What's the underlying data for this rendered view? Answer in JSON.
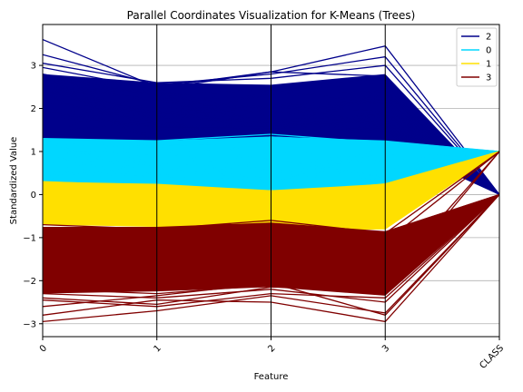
{
  "chart_data": {
    "type": "parallel-coordinates",
    "title": "Parallel Coordinates Visualization for K-Means (Trees)",
    "xlabel": "Feature",
    "ylabel": "Standardized Value",
    "axes": [
      "0",
      "1",
      "2",
      "3",
      "CLASS"
    ],
    "ylim": [
      -3.3,
      3.95
    ],
    "yticks": [
      -3,
      -2,
      -1,
      0,
      1,
      2,
      3
    ],
    "grid": true,
    "legend_position": "top-right",
    "series": [
      {
        "name": "2",
        "color": "#00008b",
        "class_value": 0.0,
        "bands": [
          [
            1.3,
            2.8
          ],
          [
            1.15,
            2.6
          ],
          [
            1.0,
            2.55
          ],
          [
            1.2,
            2.8
          ]
        ],
        "samples": [
          [
            3.6,
            2.5,
            2.85,
            3.45,
            0.0
          ],
          [
            3.25,
            2.55,
            2.8,
            3.2,
            0.0
          ],
          [
            3.05,
            2.6,
            2.7,
            3.0,
            0.0
          ],
          [
            2.95,
            2.45,
            2.85,
            2.75,
            0.0
          ],
          [
            2.8,
            2.3,
            2.45,
            2.7,
            0.0
          ],
          [
            2.7,
            2.55,
            2.4,
            2.6,
            0.0
          ],
          [
            2.5,
            2.2,
            2.3,
            2.4,
            0.0
          ],
          [
            2.3,
            2.0,
            2.1,
            2.2,
            0.0
          ],
          [
            2.0,
            1.8,
            1.7,
            1.9,
            0.0
          ],
          [
            1.8,
            1.6,
            1.55,
            1.7,
            0.0
          ],
          [
            1.5,
            1.4,
            1.3,
            1.5,
            0.0
          ]
        ]
      },
      {
        "name": "0",
        "color": "#00d7ff",
        "class_value": 1.0,
        "bands": [
          [
            0.25,
            1.3
          ],
          [
            0.2,
            1.25
          ],
          [
            0.05,
            1.35
          ],
          [
            0.15,
            1.25
          ]
        ],
        "samples": [
          [
            1.3,
            1.25,
            1.4,
            1.2,
            1.0
          ],
          [
            1.1,
            0.9,
            1.15,
            1.1,
            1.0
          ],
          [
            0.8,
            0.7,
            0.6,
            0.9,
            1.0
          ],
          [
            0.5,
            0.45,
            0.3,
            0.6,
            1.0
          ],
          [
            0.3,
            0.35,
            0.2,
            0.35,
            1.0
          ],
          [
            0.95,
            1.0,
            0.55,
            0.2,
            1.0
          ],
          [
            0.6,
            0.2,
            0.8,
            0.4,
            1.0
          ],
          [
            0.1,
            0.3,
            -0.35,
            0.0,
            1.0
          ]
        ]
      },
      {
        "name": "1",
        "color": "#ffe000",
        "class_value": 1.0,
        "bands": [
          [
            -0.7,
            0.3
          ],
          [
            -0.75,
            0.25
          ],
          [
            -0.85,
            0.1
          ],
          [
            -0.8,
            0.25
          ]
        ],
        "samples": [
          [
            0.3,
            0.2,
            0.0,
            0.25,
            1.0
          ],
          [
            0.0,
            -0.1,
            -0.2,
            0.0,
            1.0
          ],
          [
            -0.3,
            -0.4,
            -0.5,
            -0.3,
            1.0
          ],
          [
            -0.6,
            -0.7,
            -0.8,
            -0.7,
            1.0
          ],
          [
            -0.1,
            -0.2,
            -0.65,
            -0.5,
            1.0
          ]
        ]
      },
      {
        "name": "3",
        "color": "#800000",
        "class_value": 0.0,
        "bands": [
          [
            -2.3,
            -0.75
          ],
          [
            -2.25,
            -0.75
          ],
          [
            -2.15,
            -0.65
          ],
          [
            -2.35,
            -0.85
          ]
        ],
        "samples": [
          [
            -0.7,
            -0.8,
            -0.6,
            -0.9,
            1.0
          ],
          [
            -0.9,
            -1.0,
            -0.9,
            -1.1,
            1.0
          ],
          [
            -1.2,
            -1.3,
            -1.2,
            -1.4,
            0.0
          ],
          [
            -1.6,
            -1.5,
            -1.4,
            -1.7,
            0.0
          ],
          [
            -2.0,
            -1.9,
            -1.8,
            -2.0,
            1.0
          ],
          [
            -2.2,
            -2.3,
            -2.1,
            -2.3,
            0.0
          ],
          [
            -2.3,
            -2.4,
            -2.2,
            -2.5,
            0.0
          ],
          [
            -2.45,
            -2.6,
            -2.3,
            -2.4,
            0.0
          ],
          [
            -2.6,
            -2.35,
            -2.05,
            -2.8,
            0.0
          ],
          [
            -2.8,
            -2.45,
            -2.5,
            -2.95,
            0.0
          ],
          [
            -2.95,
            -2.7,
            -2.35,
            -2.75,
            0.0
          ],
          [
            -2.4,
            -2.55,
            -2.15,
            -2.2,
            1.0
          ]
        ]
      }
    ]
  }
}
